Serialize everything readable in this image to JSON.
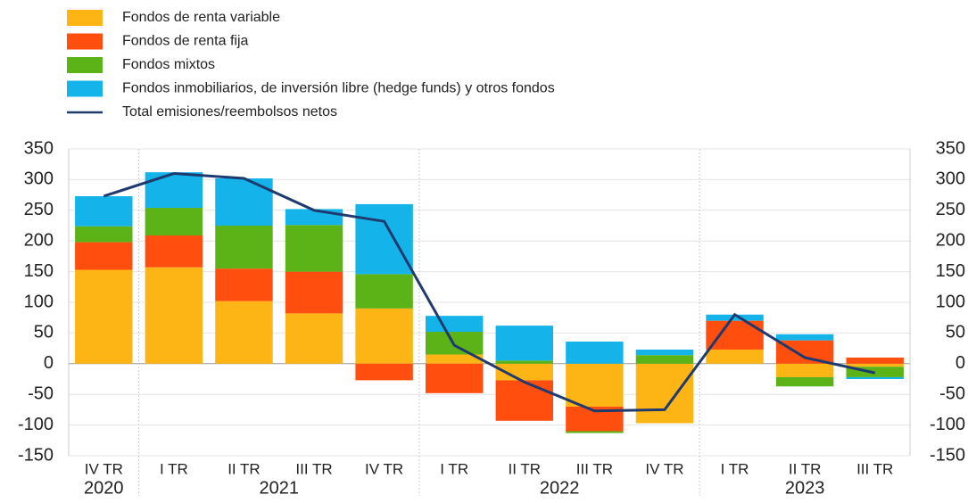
{
  "chart_data": {
    "type": "bar",
    "categories": [
      "IV TR",
      "I TR",
      "II TR",
      "III TR",
      "IV TR",
      "I TR",
      "II TR",
      "III TR",
      "IV TR",
      "I TR",
      "II TR",
      "III TR"
    ],
    "years": [
      {
        "label": "2020",
        "start": 0,
        "end": 0
      },
      {
        "label": "2021",
        "start": 1,
        "end": 4
      },
      {
        "label": "2022",
        "start": 5,
        "end": 8
      },
      {
        "label": "2023",
        "start": 9,
        "end": 11
      }
    ],
    "series": [
      {
        "name": "Fondos de renta variable",
        "color": "#fdb515",
        "values": [
          153,
          157,
          102,
          82,
          90,
          15,
          -27,
          -70,
          -97,
          23,
          -22,
          -5
        ]
      },
      {
        "name": "Fondos de renta fija",
        "color": "#ff4e0e",
        "values": [
          45,
          52,
          53,
          68,
          -27,
          -48,
          -66,
          -40,
          0,
          47,
          38,
          10
        ]
      },
      {
        "name": "Fondos mixtos",
        "color": "#5bb318",
        "values": [
          26,
          45,
          70,
          76,
          56,
          37,
          5,
          -3,
          14,
          0,
          -15,
          -17
        ]
      },
      {
        "name": "Fondos inmobiliarios, de inversión libre (hedge funds) y otros fondos",
        "color": "#14b4ea",
        "values": [
          49,
          58,
          77,
          26,
          114,
          26,
          57,
          36,
          9,
          10,
          10,
          -3
        ]
      },
      {
        "name": "Total emisiones/reembolsos netos",
        "type": "line",
        "color": "#1f3a6e",
        "values": [
          273,
          310,
          302,
          250,
          232,
          30,
          -30,
          -77,
          -75,
          80,
          10,
          -15
        ]
      }
    ],
    "ylim": [
      -150,
      350
    ],
    "yticks": [
      -150,
      -100,
      -50,
      0,
      50,
      100,
      150,
      200,
      250,
      300,
      350
    ],
    "y2lim": [
      -150,
      350
    ],
    "y2ticks": [
      -150,
      -100,
      -50,
      0,
      50,
      100,
      150,
      200,
      250,
      300,
      350
    ],
    "grid": true
  }
}
